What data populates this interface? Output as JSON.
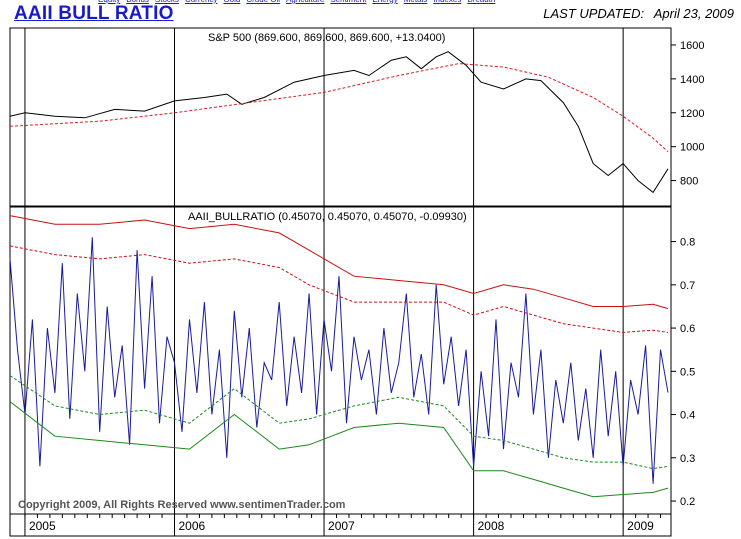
{
  "header": {
    "title": "AAII BULL RATIO",
    "last_updated_label": "LAST UPDATED:",
    "last_updated_date": "April 23, 2009",
    "nav_links": [
      "Equity",
      "Bonds",
      "Stocks",
      "Currency",
      "Gold",
      "Crude Oil",
      "Agriculture",
      "Sentiment",
      "Energy",
      "Metals",
      "Indexes",
      "Breadth"
    ]
  },
  "chart_data": [
    {
      "type": "line",
      "title": "S&P 500 (869.600, 869.600, 869.600, +13.0400)",
      "ylim": [
        650,
        1700
      ],
      "yticks": [
        800,
        1000,
        1200,
        1400,
        1600
      ],
      "series": [
        {
          "name": "S&P 500",
          "color": "#000000",
          "style": "solid",
          "x": [
            2004.9,
            2005.0,
            2005.2,
            2005.4,
            2005.6,
            2005.8,
            2006.0,
            2006.2,
            2006.35,
            2006.45,
            2006.6,
            2006.8,
            2007.0,
            2007.2,
            2007.3,
            2007.45,
            2007.55,
            2007.65,
            2007.75,
            2007.83,
            2007.95,
            2008.05,
            2008.2,
            2008.35,
            2008.45,
            2008.6,
            2008.7,
            2008.8,
            2008.9,
            2009.0,
            2009.1,
            2009.2,
            2009.3
          ],
          "y": [
            1180,
            1200,
            1180,
            1170,
            1220,
            1210,
            1270,
            1290,
            1310,
            1250,
            1290,
            1380,
            1420,
            1450,
            1420,
            1510,
            1530,
            1460,
            1530,
            1560,
            1480,
            1380,
            1340,
            1400,
            1390,
            1260,
            1120,
            900,
            830,
            900,
            800,
            730,
            869.6
          ]
        },
        {
          "name": "Moving average",
          "color": "#d62020",
          "style": "dashed",
          "x": [
            2004.9,
            2005.5,
            2006.0,
            2006.5,
            2007.0,
            2007.5,
            2007.9,
            2008.2,
            2008.5,
            2008.8,
            2009.0,
            2009.2,
            2009.3
          ],
          "y": [
            1120,
            1150,
            1200,
            1260,
            1320,
            1420,
            1490,
            1470,
            1410,
            1290,
            1180,
            1050,
            970
          ]
        }
      ]
    },
    {
      "type": "line",
      "title": "AAII_BULLRATIO (0.45070, 0.45070, 0.45070, -0.09930)",
      "ylim": [
        0.17,
        0.88
      ],
      "yticks": [
        0.2,
        0.3,
        0.4,
        0.5,
        0.6,
        0.7,
        0.8
      ],
      "xticks": [
        "2005",
        "2006",
        "2007",
        "2008",
        "2009"
      ],
      "series": [
        {
          "name": "AAII Bull Ratio",
          "color": "#1a1aa0",
          "style": "solid",
          "x": [
            2004.9,
            2004.95,
            2005.0,
            2005.05,
            2005.1,
            2005.15,
            2005.2,
            2005.25,
            2005.3,
            2005.35,
            2005.4,
            2005.45,
            2005.5,
            2005.55,
            2005.6,
            2005.65,
            2005.7,
            2005.75,
            2005.8,
            2005.85,
            2005.9,
            2005.95,
            2006.0,
            2006.05,
            2006.1,
            2006.15,
            2006.2,
            2006.25,
            2006.3,
            2006.35,
            2006.4,
            2006.45,
            2006.5,
            2006.55,
            2006.6,
            2006.65,
            2006.7,
            2006.75,
            2006.8,
            2006.85,
            2006.9,
            2006.95,
            2007.0,
            2007.05,
            2007.1,
            2007.15,
            2007.2,
            2007.25,
            2007.3,
            2007.35,
            2007.4,
            2007.45,
            2007.5,
            2007.55,
            2007.6,
            2007.65,
            2007.7,
            2007.75,
            2007.8,
            2007.85,
            2007.9,
            2007.95,
            2008.0,
            2008.05,
            2008.1,
            2008.15,
            2008.2,
            2008.25,
            2008.3,
            2008.35,
            2008.4,
            2008.45,
            2008.5,
            2008.55,
            2008.6,
            2008.65,
            2008.7,
            2008.75,
            2008.8,
            2008.85,
            2008.9,
            2008.95,
            2009.0,
            2009.05,
            2009.1,
            2009.15,
            2009.2,
            2009.25,
            2009.3
          ],
          "y": [
            0.76,
            0.55,
            0.4,
            0.62,
            0.28,
            0.6,
            0.45,
            0.75,
            0.39,
            0.68,
            0.5,
            0.81,
            0.36,
            0.65,
            0.44,
            0.56,
            0.33,
            0.78,
            0.46,
            0.72,
            0.38,
            0.58,
            0.52,
            0.36,
            0.62,
            0.45,
            0.66,
            0.4,
            0.55,
            0.3,
            0.64,
            0.44,
            0.6,
            0.37,
            0.52,
            0.48,
            0.66,
            0.42,
            0.58,
            0.45,
            0.68,
            0.4,
            0.62,
            0.5,
            0.72,
            0.38,
            0.58,
            0.48,
            0.55,
            0.4,
            0.6,
            0.45,
            0.52,
            0.68,
            0.44,
            0.54,
            0.4,
            0.7,
            0.47,
            0.58,
            0.42,
            0.55,
            0.28,
            0.5,
            0.35,
            0.62,
            0.32,
            0.52,
            0.44,
            0.68,
            0.4,
            0.55,
            0.3,
            0.48,
            0.38,
            0.52,
            0.34,
            0.46,
            0.3,
            0.55,
            0.35,
            0.5,
            0.28,
            0.48,
            0.4,
            0.56,
            0.24,
            0.55,
            0.4507
          ]
        },
        {
          "name": "Upper band",
          "color": "#cc1010",
          "style": "solid",
          "x": [
            2004.9,
            2005.2,
            2005.5,
            2005.8,
            2006.1,
            2006.4,
            2006.7,
            2006.9,
            2007.2,
            2007.5,
            2007.8,
            2008.0,
            2008.2,
            2008.4,
            2008.6,
            2008.8,
            2009.0,
            2009.2,
            2009.3
          ],
          "y": [
            0.86,
            0.84,
            0.84,
            0.85,
            0.83,
            0.84,
            0.82,
            0.78,
            0.72,
            0.71,
            0.7,
            0.68,
            0.7,
            0.69,
            0.67,
            0.65,
            0.65,
            0.655,
            0.645
          ]
        },
        {
          "name": "Upper dotted band",
          "color": "#cc1010",
          "style": "dashed",
          "x": [
            2004.9,
            2005.2,
            2005.5,
            2005.8,
            2006.1,
            2006.4,
            2006.7,
            2006.9,
            2007.2,
            2007.5,
            2007.8,
            2008.0,
            2008.2,
            2008.4,
            2008.6,
            2008.8,
            2009.0,
            2009.2,
            2009.3
          ],
          "y": [
            0.79,
            0.77,
            0.76,
            0.77,
            0.75,
            0.76,
            0.74,
            0.7,
            0.66,
            0.66,
            0.66,
            0.63,
            0.65,
            0.63,
            0.61,
            0.6,
            0.59,
            0.595,
            0.59
          ]
        },
        {
          "name": "Lower dotted band",
          "color": "#1a8a1a",
          "style": "dashed",
          "x": [
            2004.9,
            2005.2,
            2005.5,
            2005.8,
            2006.1,
            2006.4,
            2006.7,
            2006.9,
            2007.2,
            2007.5,
            2007.8,
            2008.0,
            2008.2,
            2008.4,
            2008.6,
            2008.8,
            2009.0,
            2009.2,
            2009.3
          ],
          "y": [
            0.49,
            0.42,
            0.4,
            0.41,
            0.38,
            0.46,
            0.38,
            0.39,
            0.42,
            0.44,
            0.42,
            0.35,
            0.34,
            0.32,
            0.3,
            0.29,
            0.29,
            0.275,
            0.28
          ]
        },
        {
          "name": "Lower band",
          "color": "#1a8a1a",
          "style": "solid",
          "x": [
            2004.9,
            2005.2,
            2005.5,
            2005.8,
            2006.1,
            2006.4,
            2006.7,
            2006.9,
            2007.2,
            2007.5,
            2007.8,
            2008.0,
            2008.2,
            2008.4,
            2008.6,
            2008.8,
            2009.0,
            2009.2,
            2009.3
          ],
          "y": [
            0.43,
            0.35,
            0.34,
            0.33,
            0.32,
            0.4,
            0.32,
            0.33,
            0.37,
            0.38,
            0.37,
            0.27,
            0.27,
            0.25,
            0.23,
            0.21,
            0.215,
            0.22,
            0.23
          ]
        }
      ]
    }
  ],
  "copyright": "Copyright 2009, All Rights Reserved  www.sentimenTrader.com"
}
